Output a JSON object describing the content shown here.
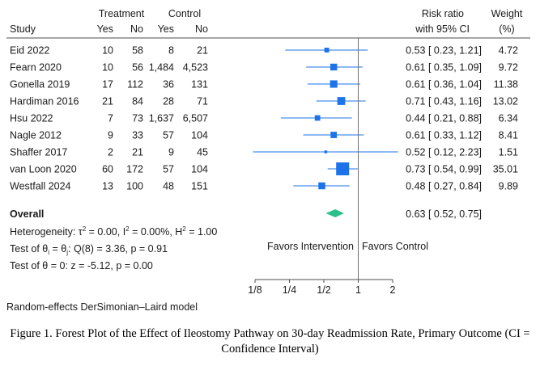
{
  "header": {
    "study": "Study",
    "treatment": "Treatment",
    "control": "Control",
    "yes": "Yes",
    "no": "No",
    "risk_ratio": "Risk ratio",
    "ci_label": "with 95% CI",
    "weight": "Weight",
    "weight_unit": "(%)"
  },
  "chart_data": {
    "type": "forest",
    "xscale": "log2",
    "xlim": [
      0.125,
      2
    ],
    "xticks": [
      "1/8",
      "1/4",
      "1/2",
      "1",
      "2"
    ],
    "null_value": 1,
    "marker_color": "#1e73e8",
    "diamond_color": "#2bbf8a",
    "studies": [
      {
        "name": "Eid 2022",
        "t_yes": "10",
        "t_no": "58",
        "c_yes": "8",
        "c_no": "21",
        "rr": 0.53,
        "lo": 0.23,
        "hi": 1.21,
        "ci_text": "0.53 [ 0.23, 1.21]",
        "weight": 4.72,
        "weight_text": "4.72"
      },
      {
        "name": "Fearn 2020",
        "t_yes": "10",
        "t_no": "56",
        "c_yes": "1,484",
        "c_no": "4,523",
        "rr": 0.61,
        "lo": 0.35,
        "hi": 1.09,
        "ci_text": "0.61 [ 0.35, 1.09]",
        "weight": 9.72,
        "weight_text": "9.72"
      },
      {
        "name": "Gonella 2019",
        "t_yes": "17",
        "t_no": "112",
        "c_yes": "36",
        "c_no": "131",
        "rr": 0.61,
        "lo": 0.36,
        "hi": 1.04,
        "ci_text": "0.61 [ 0.36, 1.04]",
        "weight": 11.38,
        "weight_text": "11.38"
      },
      {
        "name": "Hardiman 2016",
        "t_yes": "21",
        "t_no": "84",
        "c_yes": "28",
        "c_no": "71",
        "rr": 0.71,
        "lo": 0.43,
        "hi": 1.16,
        "ci_text": "0.71 [ 0.43, 1.16]",
        "weight": 13.02,
        "weight_text": "13.02"
      },
      {
        "name": "Hsu 2022",
        "t_yes": "7",
        "t_no": "73",
        "c_yes": "1,637",
        "c_no": "6,507",
        "rr": 0.44,
        "lo": 0.21,
        "hi": 0.88,
        "ci_text": "0.44 [ 0.21, 0.88]",
        "weight": 6.34,
        "weight_text": "6.34"
      },
      {
        "name": "Nagle 2012",
        "t_yes": "9",
        "t_no": "33",
        "c_yes": "57",
        "c_no": "104",
        "rr": 0.61,
        "lo": 0.33,
        "hi": 1.12,
        "ci_text": "0.61 [ 0.33, 1.12]",
        "weight": 8.41,
        "weight_text": "8.41"
      },
      {
        "name": "Shaffer 2017",
        "t_yes": "2",
        "t_no": "21",
        "c_yes": "9",
        "c_no": "45",
        "rr": 0.52,
        "lo": 0.12,
        "hi": 2.23,
        "ci_text": "0.52 [ 0.12, 2.23]",
        "weight": 1.51,
        "weight_text": "1.51"
      },
      {
        "name": "van Loon 2020",
        "t_yes": "60",
        "t_no": "172",
        "c_yes": "57",
        "c_no": "104",
        "rr": 0.73,
        "lo": 0.54,
        "hi": 0.99,
        "ci_text": "0.73 [ 0.54, 0.99]",
        "weight": 35.01,
        "weight_text": "35.01"
      },
      {
        "name": "Westfall 2024",
        "t_yes": "13",
        "t_no": "100",
        "c_yes": "48",
        "c_no": "151",
        "rr": 0.48,
        "lo": 0.27,
        "hi": 0.84,
        "ci_text": "0.48 [ 0.27, 0.84]",
        "weight": 9.89,
        "weight_text": "9.89"
      }
    ],
    "overall": {
      "label": "Overall",
      "rr": 0.63,
      "lo": 0.52,
      "hi": 0.75,
      "ci_text": "0.63 [ 0.52, 0.75]"
    },
    "heterogeneity": {
      "prefix": "Heterogeneity: τ",
      "tau2": " = 0.00, I",
      "i2": " = 0.00%, H",
      "h2": " = 1.00"
    },
    "test_homogeneity": "Q(8) = 3.36, p = 0.91",
    "test_homogeneity_prefix": "Test of θ",
    "test_homogeneity_mid": " = θ",
    "test_homogeneity_colon": ": ",
    "test_effect": "Test of θ = 0: z = -5.12, p = 0.00",
    "favors_left": "Favors Intervention",
    "favors_right": "Favors Control",
    "model_note": "Random-effects DerSimonian–Laird model"
  },
  "caption": "Figure 1. Forest Plot of the Effect of Ileostomy Pathway on 30-day Readmission Rate, Primary Outcome (CI = Confidence Interval)"
}
